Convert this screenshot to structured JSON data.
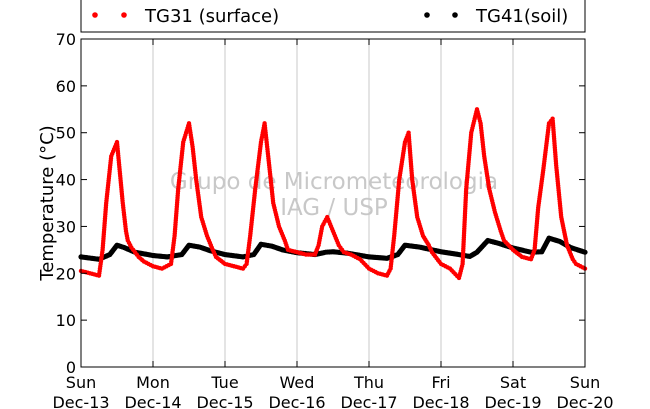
{
  "chart_data": {
    "type": "scatter",
    "title": "",
    "ylabel": "Temperature (°C)",
    "xlabel": "",
    "ylim": [
      0,
      70
    ],
    "yticks": [
      0,
      10,
      20,
      30,
      40,
      50,
      60,
      70
    ],
    "xlim": [
      0,
      7
    ],
    "x_unit": "days since Sun Dec-13 00:00",
    "xticks": [
      {
        "day": "Sun",
        "date": "Dec-13"
      },
      {
        "day": "Mon",
        "date": "Dec-14"
      },
      {
        "day": "Tue",
        "date": "Dec-15"
      },
      {
        "day": "Wed",
        "date": "Dec-16"
      },
      {
        "day": "Thu",
        "date": "Dec-17"
      },
      {
        "day": "Fri",
        "date": "Dec-18"
      },
      {
        "day": "Sat",
        "date": "Dec-19"
      },
      {
        "day": "Sun",
        "date": "Dec-20"
      }
    ],
    "grid": "vertical",
    "legend_placement": "top",
    "watermark": [
      "Grupo de Micrometeorologia",
      "IAG / USP"
    ],
    "series": [
      {
        "name": "TG31 (surface)",
        "color": "#ff0000",
        "x": [
          0.0,
          0.125,
          0.25,
          0.3,
          0.35,
          0.42,
          0.5,
          0.58,
          0.625,
          0.65,
          0.7,
          0.75,
          0.8,
          0.875,
          1.0,
          1.125,
          1.25,
          1.3,
          1.35,
          1.42,
          1.5,
          1.55,
          1.6,
          1.67,
          1.75,
          1.83,
          1.875,
          2.0,
          2.125,
          2.25,
          2.3,
          2.35,
          2.42,
          2.5,
          2.55,
          2.6,
          2.67,
          2.75,
          2.83,
          2.875,
          3.0,
          3.125,
          3.25,
          3.3,
          3.35,
          3.42,
          3.5,
          3.58,
          3.65,
          3.75,
          3.875,
          4.0,
          4.125,
          4.25,
          4.3,
          4.35,
          4.42,
          4.5,
          4.55,
          4.6,
          4.67,
          4.75,
          4.83,
          4.875,
          5.0,
          5.125,
          5.25,
          5.3,
          5.35,
          5.42,
          5.5,
          5.55,
          5.6,
          5.67,
          5.75,
          5.83,
          5.875,
          6.0,
          6.125,
          6.25,
          6.3,
          6.35,
          6.42,
          6.5,
          6.55,
          6.6,
          6.67,
          6.75,
          6.83,
          6.875,
          7.0
        ],
        "y": [
          20.5,
          20.0,
          19.5,
          25,
          35,
          45,
          48,
          35,
          29,
          27,
          25.5,
          24.5,
          23.5,
          22.5,
          21.5,
          21,
          22,
          28,
          38,
          48,
          52,
          47,
          40,
          32,
          28,
          25,
          23.5,
          22,
          21.5,
          21,
          22,
          28,
          38,
          48,
          52,
          45,
          35,
          30,
          27,
          25,
          24.5,
          24,
          24,
          26,
          30,
          32,
          29,
          26,
          24.5,
          24,
          23,
          21,
          20,
          19.5,
          21,
          28,
          40,
          48,
          50,
          40,
          32,
          28,
          26,
          24.5,
          22,
          21,
          19,
          22,
          38,
          50,
          55,
          52,
          45,
          38,
          33,
          29,
          27,
          25,
          23.5,
          23,
          25,
          34,
          42,
          52,
          53,
          43,
          32,
          26,
          23,
          22,
          21
        ]
      },
      {
        "name": "TG41(soil)",
        "color": "#000000",
        "x": [
          0.0,
          0.25,
          0.4,
          0.5,
          0.6,
          0.75,
          1.0,
          1.2,
          1.4,
          1.5,
          1.65,
          1.8,
          2.0,
          2.25,
          2.4,
          2.5,
          2.65,
          2.8,
          3.0,
          3.25,
          3.4,
          3.5,
          3.7,
          4.0,
          4.25,
          4.4,
          4.5,
          4.7,
          5.0,
          5.25,
          5.4,
          5.5,
          5.65,
          5.8,
          6.0,
          6.25,
          6.4,
          6.5,
          6.65,
          6.8,
          7.0
        ],
        "y": [
          23.5,
          23.0,
          24.0,
          26.0,
          25.5,
          24.5,
          23.8,
          23.5,
          24.0,
          26.0,
          25.6,
          24.8,
          24.0,
          23.5,
          24.0,
          26.2,
          25.8,
          25.0,
          24.4,
          24.0,
          24.5,
          24.6,
          24.3,
          23.5,
          23.2,
          24.0,
          26.0,
          25.6,
          24.6,
          24.0,
          23.6,
          24.5,
          27.0,
          26.4,
          25.4,
          24.5,
          24.6,
          27.5,
          26.8,
          25.5,
          24.5
        ]
      }
    ]
  }
}
